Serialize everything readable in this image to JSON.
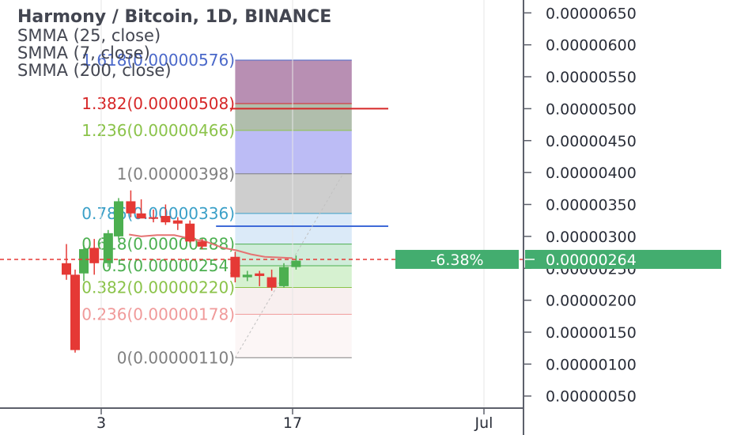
{
  "chart_data": {
    "type": "candlestick",
    "title": "Harmony / Bitcoin, 1D, BINANCE",
    "indicators": [
      "SMMA (25, close)",
      "SMMA (7, close)",
      "SMMA (200, close)"
    ],
    "y_axis": {
      "ticks": [
        "0.00000650",
        "0.00000600",
        "0.00000550",
        "0.00000500",
        "0.00000450",
        "0.00000400",
        "0.00000350",
        "0.00000300",
        "0.00000250",
        "0.00000200",
        "0.00000150",
        "0.00000100",
        "0.00000050"
      ],
      "tick_values": [
        650,
        600,
        550,
        500,
        450,
        400,
        350,
        300,
        250,
        200,
        150,
        100,
        50
      ]
    },
    "x_axis": {
      "ticks": [
        "3",
        "17",
        "Jul"
      ],
      "tick_positions": [
        4.0,
        15.0,
        26.0
      ]
    },
    "candles": [
      {
        "x": 2.0,
        "o": 258,
        "h": 288,
        "l": 232,
        "c": 240
      },
      {
        "x": 2.5,
        "o": 240,
        "h": 248,
        "l": 118,
        "c": 122
      },
      {
        "x": 3.0,
        "o": 242,
        "h": 286,
        "l": 230,
        "c": 280
      },
      {
        "x": 3.6,
        "o": 282,
        "h": 296,
        "l": 240,
        "c": 258
      },
      {
        "x": 4.4,
        "o": 258,
        "h": 310,
        "l": 252,
        "c": 305
      },
      {
        "x": 5.0,
        "o": 300,
        "h": 360,
        "l": 295,
        "c": 355
      },
      {
        "x": 5.7,
        "o": 355,
        "h": 372,
        "l": 330,
        "c": 336
      },
      {
        "x": 6.3,
        "o": 336,
        "h": 358,
        "l": 330,
        "c": 328
      },
      {
        "x": 7.0,
        "o": 330,
        "h": 342,
        "l": 322,
        "c": 328
      },
      {
        "x": 7.7,
        "o": 332,
        "h": 350,
        "l": 318,
        "c": 322
      },
      {
        "x": 8.4,
        "o": 325,
        "h": 330,
        "l": 310,
        "c": 320
      },
      {
        "x": 9.1,
        "o": 320,
        "h": 325,
        "l": 290,
        "c": 292
      },
      {
        "x": 9.8,
        "o": 292,
        "h": 296,
        "l": 280,
        "c": 284
      },
      {
        "x": 11.7,
        "o": 268,
        "h": 276,
        "l": 228,
        "c": 236
      },
      {
        "x": 12.4,
        "o": 236,
        "h": 246,
        "l": 230,
        "c": 240
      },
      {
        "x": 13.1,
        "o": 242,
        "h": 246,
        "l": 222,
        "c": 238
      },
      {
        "x": 13.8,
        "o": 236,
        "h": 248,
        "l": 215,
        "c": 220
      },
      {
        "x": 14.5,
        "o": 222,
        "h": 258,
        "l": 220,
        "c": 252
      },
      {
        "x": 15.2,
        "o": 252,
        "h": 270,
        "l": 248,
        "c": 262
      }
    ],
    "smma_line": [
      {
        "x": 5.6,
        "y": 303
      },
      {
        "x": 6.3,
        "y": 300
      },
      {
        "x": 7.2,
        "y": 302
      },
      {
        "x": 8.2,
        "y": 302
      },
      {
        "x": 9.2,
        "y": 296
      },
      {
        "x": 10.0,
        "y": 292
      },
      {
        "x": 11.0,
        "y": 282
      },
      {
        "x": 11.8,
        "y": 278
      },
      {
        "x": 12.6,
        "y": 272
      },
      {
        "x": 13.4,
        "y": 268
      },
      {
        "x": 14.2,
        "y": 267
      },
      {
        "x": 15.0,
        "y": 266
      }
    ],
    "fibonacci": {
      "levels": [
        {
          "label": "1.618(0.00000576)",
          "value": 576,
          "color": "#4a68c9",
          "fill": "#a06a9a"
        },
        {
          "label": "1.382(0.00000508)",
          "value": 508,
          "color": "#d62728",
          "fill": "#95a890"
        },
        {
          "label": "1.236(0.00000466)",
          "value": 466,
          "color": "#8bc34a",
          "fill": "#a6a6f2"
        },
        {
          "label": "1(0.00000398)",
          "value": 398,
          "color": "#808080",
          "fill": "#bdbdbd"
        },
        {
          "label": "0.786(0.00000336)",
          "value": 336,
          "color": "#3ba0c8",
          "fill": "#cfe3f5"
        },
        {
          "label": "0.618(0.00000288)",
          "value": 288,
          "color": "#4caf50",
          "fill": "#bfe6cc"
        },
        {
          "label": "0.5(0.00000254)",
          "value": 254,
          "color": "#4caf50",
          "fill": "#c8ecc0"
        },
        {
          "label": "0.382(0.00000220)",
          "value": 220,
          "color": "#8bc34a",
          "fill": "#f6e9e9"
        },
        {
          "label": "0.236(0.00000178)",
          "value": 178,
          "color": "#f09a9a",
          "fill": "#fbf3f3"
        },
        {
          "label": "0(0.00000110)",
          "value": 110,
          "color": "#808080",
          "fill": "#ffffff"
        }
      ],
      "x_start": 11.7,
      "x_end": 18.4
    },
    "horizontal_lines": [
      {
        "value": 500,
        "color": "#d62728",
        "x_start": 11.4,
        "x_end": 20.5
      },
      {
        "value": 316,
        "color": "#3f6ad8",
        "x_start": 10.6,
        "x_end": 20.5
      }
    ],
    "current_price_value": 264,
    "current_price_label": "0.00000264",
    "change_label": "-6.38%",
    "colors": {
      "up": "#4caf50",
      "down": "#e53935",
      "badge": "#43ad6f",
      "smma": "#e57373",
      "axis": "#5d606b"
    }
  }
}
